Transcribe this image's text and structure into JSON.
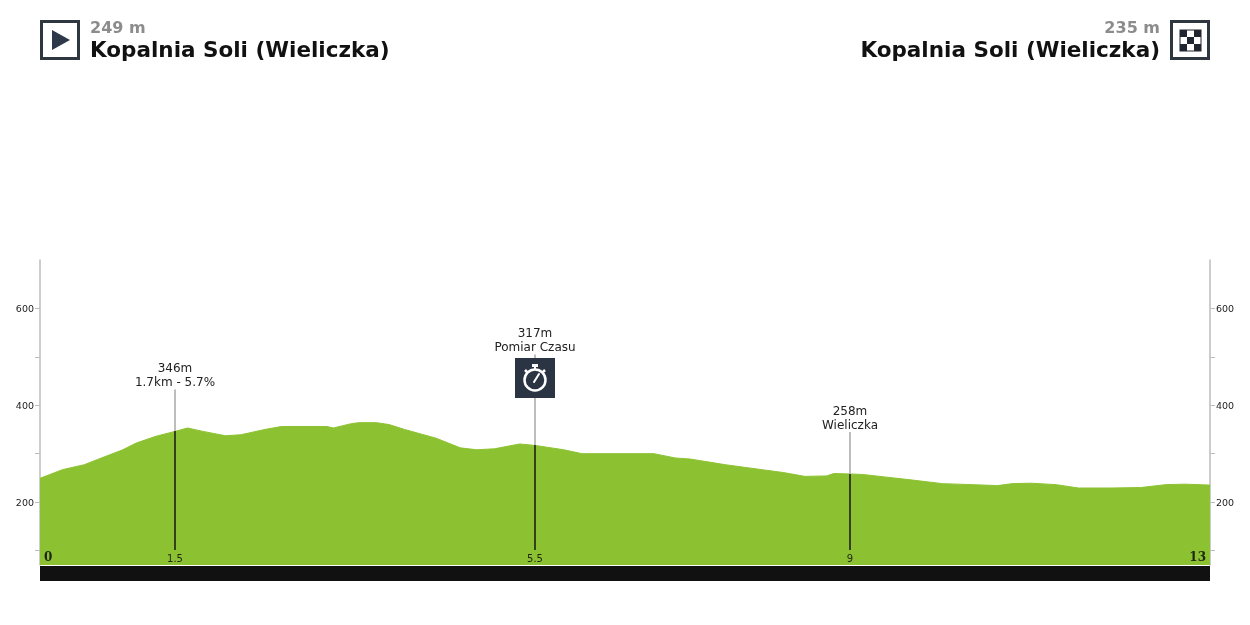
{
  "chart_data": {
    "type": "area",
    "annotations": [
      "249 m\nKopalnia Soli (Wieliczka)",
      "235 m\nKopalnia Soli (Wieliczka)",
      {
        "text": "346m\n1.7km - 5.7%",
        "x": 1.5,
        "y": 346
      },
      {
        "text": "317m\nPomiar Czasu",
        "x": 5.5,
        "y": 317
      },
      {
        "text": "258m\nWieliczka",
        "x": 9,
        "y": 258
      }
    ],
    "x": [
      0,
      0.25,
      0.49,
      0.64,
      0.92,
      1.07,
      1.29,
      1.5,
      1.64,
      1.81,
      2.06,
      2.23,
      2.5,
      2.68,
      3.19,
      3.26,
      3.46,
      3.54,
      3.74,
      3.88,
      4.05,
      4.4,
      4.67,
      4.85,
      5.05,
      5.33,
      5.5,
      5.82,
      6.02,
      6.82,
      7.06,
      7.22,
      7.62,
      8.02,
      8.26,
      8.5,
      8.74,
      8.82,
      9,
      9.14,
      9.38,
      9.67,
      10.03,
      10.36,
      10.64,
      10.8,
      11.01,
      11.29,
      11.54,
      11.9,
      12.23,
      12.51,
      12.72,
      13
    ],
    "values": [
      249,
      267,
      277,
      288,
      308,
      322,
      336,
      346,
      353,
      346,
      337,
      339,
      350,
      356,
      356,
      353,
      362,
      364,
      364,
      360,
      350,
      332,
      312,
      308,
      310,
      320,
      317,
      308,
      300,
      300,
      291,
      289,
      277,
      267,
      261,
      253,
      254,
      259,
      258,
      257,
      252,
      246,
      238,
      236,
      234,
      238,
      239,
      236,
      229,
      229,
      230,
      236,
      237,
      235
    ],
    "color": "#8cc232",
    "xlim": [
      0,
      13
    ],
    "xticks": [
      0,
      1.5,
      5.5,
      9,
      13
    ],
    "ylim": [
      70,
      700
    ],
    "yticks": [
      {
        "value": 100,
        "label": null
      },
      200,
      {
        "value": 300,
        "label": null
      },
      400,
      {
        "value": 500,
        "label": null
      },
      600
    ],
    "y2lim": [
      70,
      700
    ],
    "y2ticks": [
      {
        "value": 100,
        "label": null
      },
      200,
      {
        "value": 300,
        "label": null
      },
      400,
      {
        "value": 500,
        "label": null
      },
      600
    ]
  }
}
